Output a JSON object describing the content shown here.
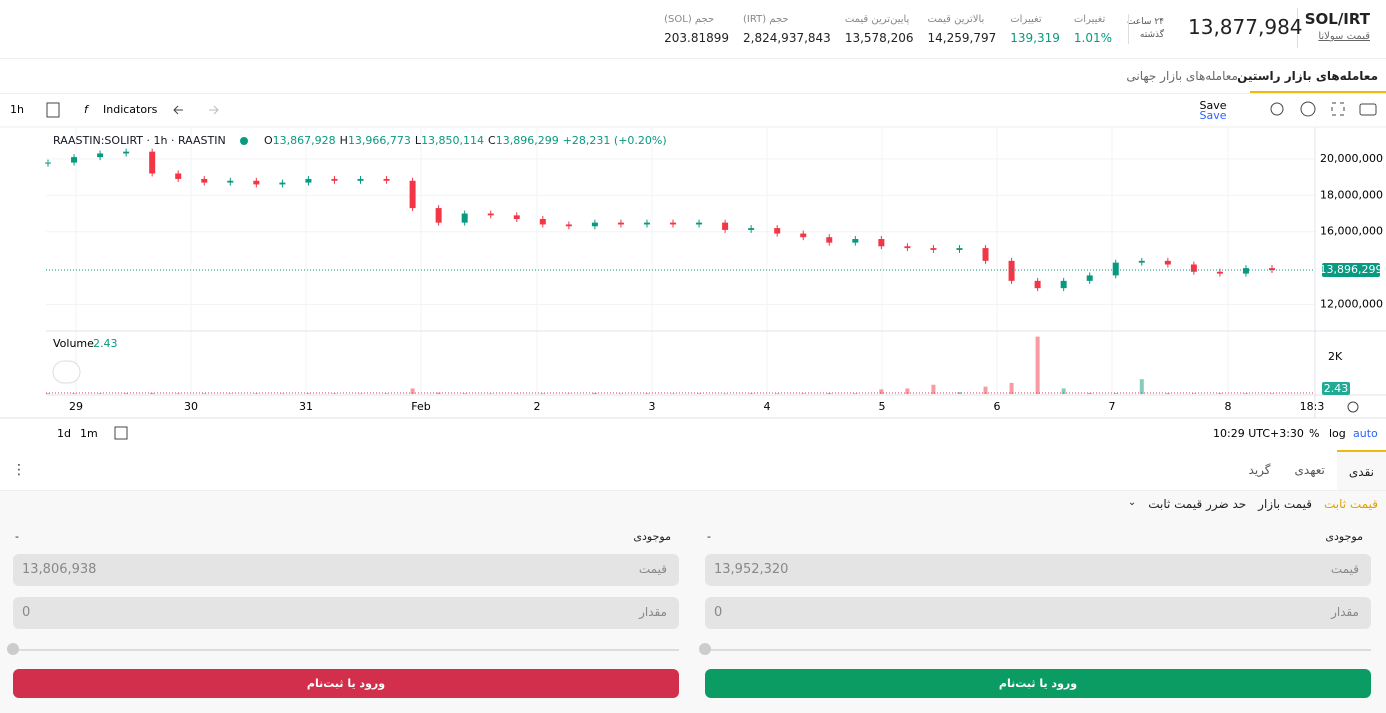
{
  "header": {
    "pair": "SOL/IRT",
    "pair_subtitle": "قیمت سولانا",
    "last_price": "13,877,984",
    "period": [
      "۲۴ ساعت",
      "گذشته"
    ],
    "stats": [
      {
        "label": "تغییرات",
        "value": "1.01%"
      },
      {
        "label": "تغییرات",
        "value": "139,319"
      },
      {
        "label": "بالاترین قیمت",
        "value": "14,259,797"
      },
      {
        "label": "پایین‌ترین قیمت",
        "value": "13,578,206"
      },
      {
        "label": "حجم (IRT)",
        "value": "2,824,937,843"
      },
      {
        "label": "حجم (SOL)",
        "value": "203.81899"
      }
    ]
  },
  "tabs": [
    "معامله‌های بازار راستین",
    "معامله‌های بازار جهانی"
  ],
  "toolbar": {
    "interval": "1h",
    "indicators": "Indicators",
    "save": "Save",
    "save_sub": "Save"
  },
  "chart_data": {
    "type": "candlestick",
    "legend": {
      "symbol": "RAASTIN:SOLIRT · 1h · RAASTIN",
      "o_label": "O",
      "o": "13,867,928",
      "h_label": "H",
      "h": "13,966,773",
      "l_label": "L",
      "l": "13,850,114",
      "c_label": "C",
      "c": "13,896,299",
      "change": "+28,231 (+0.20%)"
    },
    "values": [
      19800000,
      20100000,
      20300000,
      20400000,
      19200000,
      18900000,
      18700000,
      18800000,
      18600000,
      18700000,
      18900000,
      18800000,
      18900000,
      18800000,
      17300000,
      16500000,
      17000000,
      16900000,
      16700000,
      16400000,
      16300000,
      16500000,
      16400000,
      16500000,
      16400000,
      16500000,
      16100000,
      16200000,
      15900000,
      15700000,
      15400000,
      15600000,
      15200000,
      15100000,
      15000000,
      15100000,
      14400000,
      13300000,
      12900000,
      13300000,
      13600000,
      14300000,
      14400000,
      14200000,
      13800000,
      13700000,
      14000000,
      13896299
    ],
    "up_color": "#089981",
    "down_color": "#f23645",
    "ylim": [
      10600000,
      21700000
    ],
    "yticks": [
      {
        "value": 12000000,
        "label": "12,000,000"
      },
      {
        "value": 16000000,
        "label": "16,000,000"
      },
      {
        "value": 18000000,
        "label": "18,000,000"
      },
      {
        "value": 20000000,
        "label": "20,000,000"
      }
    ],
    "last_price": 13896299,
    "last_price_label": "13,896,299",
    "x_labels": [
      "29",
      "30",
      "31",
      "Feb",
      "2",
      "3",
      "4",
      "5",
      "6",
      "7",
      "8",
      "18:3"
    ],
    "volume_label": "Volume",
    "volume_last_label": "2.43",
    "volume": [
      40,
      30,
      30,
      40,
      60,
      30,
      30,
      20,
      30,
      20,
      30,
      30,
      20,
      30,
      300,
      80,
      30,
      20,
      20,
      30,
      20,
      60,
      20,
      30,
      20,
      30,
      20,
      30,
      30,
      30,
      60,
      30,
      250,
      300,
      500,
      100,
      400,
      600,
      3100,
      300,
      60,
      40,
      800,
      50,
      30,
      40,
      30,
      20
    ],
    "volume_ylim": [
      0,
      3350
    ],
    "volume_yticks": [
      {
        "value": 2000,
        "label": "2K"
      }
    ],
    "bottom": {
      "ranges": [
        "1d",
        "1m"
      ],
      "time": "10:29 UTC+3:30",
      "percent": "%",
      "log": "log",
      "auto": "auto"
    }
  },
  "order": {
    "tabs": [
      "نقدی",
      "تعهدی",
      "گرید"
    ],
    "types": [
      "قیمت ثابت",
      "قیمت بازار",
      "حد ضرر قیمت ثابت"
    ],
    "buy": {
      "balance_label": "موجودی",
      "balance": "-",
      "price_label": "قیمت",
      "price": "13,952,320",
      "amount_label": "مقدار",
      "amount": "0",
      "button": "ورود یا ثبت‌نام"
    },
    "sell": {
      "balance_label": "موجودی",
      "balance": "-",
      "price_label": "قیمت",
      "price": "13,806,938",
      "amount_label": "مقدار",
      "amount": "0",
      "button": "ورود یا ثبت‌نام"
    }
  }
}
